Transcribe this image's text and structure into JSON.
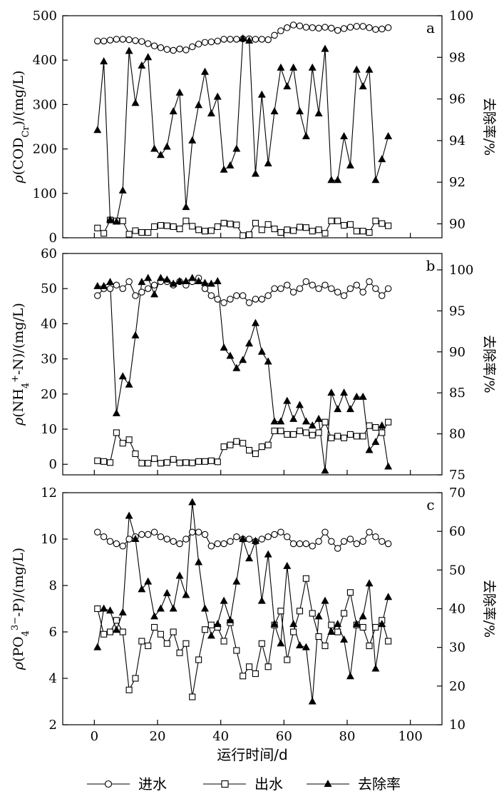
{
  "chart_data": {
    "type": "line",
    "x_label": "运行时间/d",
    "x_ticks": [
      "0",
      "20",
      "40",
      "60",
      "80",
      "100"
    ],
    "xlim": [
      -10,
      110
    ],
    "legend": {
      "influent": "进水",
      "effluent": "出水",
      "removal": "去除率"
    },
    "panels": [
      {
        "id": "a",
        "letter": "a",
        "ylabel_main": "ρ(COD",
        "ylabel_sub": "Cr",
        "ylabel_tail": ")/(mg/L)",
        "ylabel_right": "去除率/%",
        "ylim": [
          0,
          500
        ],
        "y_ticks": [
          "0",
          "100",
          "200",
          "300",
          "400",
          "500"
        ],
        "y2lim": [
          89.33,
          100
        ],
        "y2_ticks": [
          "90",
          "92",
          "94",
          "96",
          "98",
          "100"
        ],
        "x": [
          1,
          3,
          5,
          7,
          9,
          11,
          13,
          15,
          17,
          19,
          21,
          23,
          25,
          27,
          29,
          31,
          33,
          35,
          37,
          39,
          41,
          43,
          45,
          47,
          49,
          51,
          53,
          55,
          57,
          59,
          61,
          63,
          65,
          67,
          69,
          71,
          73,
          75,
          77,
          79,
          81,
          83,
          85,
          87,
          89,
          91,
          93
        ],
        "influent": [
          443,
          443,
          445,
          447,
          447,
          446,
          444,
          442,
          437,
          432,
          428,
          424,
          422,
          425,
          423,
          430,
          436,
          440,
          441,
          443,
          447,
          447,
          447,
          448,
          448,
          447,
          447,
          446,
          456,
          466,
          473,
          479,
          477,
          474,
          473,
          472,
          474,
          472,
          467,
          471,
          474,
          476,
          476,
          473,
          469,
          470,
          473
        ],
        "x_eff": [
          1,
          3,
          5,
          7,
          9,
          11,
          13,
          15,
          17,
          19,
          21,
          23,
          25,
          27,
          29,
          31,
          33,
          35,
          37,
          39,
          41,
          43,
          45,
          47,
          49,
          51,
          53,
          55,
          57,
          59,
          61,
          63,
          65,
          67,
          69,
          71,
          73,
          75,
          77,
          79,
          81,
          83,
          85,
          87,
          89,
          91,
          93
        ],
        "effluent": [
          22,
          10,
          40,
          38,
          38,
          8,
          16,
          12,
          12,
          25,
          28,
          27,
          25,
          20,
          38,
          26,
          18,
          15,
          16,
          25,
          33,
          31,
          29,
          5,
          7,
          33,
          18,
          30,
          20,
          12,
          18,
          16,
          24,
          23,
          15,
          18,
          10,
          38,
          38,
          28,
          30,
          15,
          15,
          12,
          38,
          32,
          27
        ],
        "x_rem": [
          1,
          3,
          5,
          7,
          9,
          11,
          13,
          15,
          17,
          19,
          21,
          23,
          25,
          27,
          29,
          31,
          33,
          35,
          37,
          39,
          41,
          43,
          45,
          47,
          49,
          51,
          53,
          55,
          57,
          59,
          61,
          63,
          65,
          67,
          69,
          71,
          73,
          75,
          77,
          79,
          81,
          83,
          85,
          87,
          89,
          91,
          93
        ],
        "removal": [
          94.5,
          97.8,
          90.2,
          90.1,
          91.6,
          98.3,
          95.8,
          97.6,
          98,
          93.6,
          93.3,
          93.7,
          95.4,
          96.3,
          90.8,
          94,
          95.7,
          97.3,
          95.3,
          96.1,
          92.6,
          92.8,
          93.6,
          98.9,
          98.8,
          92.4,
          96.2,
          92.9,
          95.4,
          97.5,
          96.6,
          97.5,
          95.4,
          94.2,
          97.5,
          95.3,
          98.4,
          92.1,
          92.1,
          94.2,
          92.8,
          97.4,
          96.6,
          97.4,
          92.1,
          93.1,
          94.2
        ]
      },
      {
        "id": "b",
        "letter": "b",
        "ylabel_main": "ρ(NH",
        "ylabel_sub": "4",
        "ylabel_sup": "+",
        "ylabel_tail": "-N)/(mg/L)",
        "ylabel_right": "去除率/%",
        "ylim": [
          -3,
          60
        ],
        "y_ticks": [
          "0",
          "10",
          "20",
          "30",
          "40",
          "50",
          "60"
        ],
        "y2lim": [
          75,
          102
        ],
        "y2_ticks": [
          "75",
          "80",
          "85",
          "90",
          "95",
          "100"
        ],
        "x": [
          1,
          3,
          5,
          7,
          9,
          11,
          13,
          15,
          17,
          19,
          21,
          23,
          25,
          27,
          29,
          31,
          33,
          35,
          37,
          39,
          41,
          43,
          45,
          47,
          49,
          51,
          53,
          55,
          57,
          59,
          61,
          63,
          65,
          67,
          69,
          71,
          73,
          75,
          77,
          79,
          81,
          83,
          85,
          87,
          89,
          91,
          93
        ],
        "influent": [
          48,
          50,
          50,
          51,
          50,
          52,
          48,
          49,
          50,
          51,
          52,
          52,
          51,
          52,
          51,
          52,
          53,
          50,
          48,
          47,
          46,
          47,
          48,
          48,
          46,
          47,
          47,
          48,
          50,
          50,
          51,
          49,
          50,
          52,
          51,
          50,
          51,
          50,
          49,
          48,
          50,
          51,
          49,
          52,
          50,
          48,
          50
        ],
        "x_eff": [
          1,
          3,
          5,
          7,
          9,
          11,
          13,
          15,
          17,
          19,
          21,
          23,
          25,
          27,
          29,
          31,
          33,
          35,
          37,
          39,
          41,
          43,
          45,
          47,
          49,
          51,
          53,
          55,
          57,
          59,
          61,
          63,
          65,
          67,
          69,
          71,
          73,
          75,
          77,
          79,
          81,
          83,
          85,
          87,
          89,
          91,
          93
        ],
        "effluent": [
          1,
          0.8,
          0.5,
          9,
          6,
          7,
          3,
          0.3,
          0.3,
          1.6,
          0.3,
          0.5,
          1.4,
          0.4,
          0.5,
          0.4,
          0.8,
          0.8,
          1,
          0.7,
          5,
          5.5,
          6.5,
          6,
          4,
          3,
          5,
          5.5,
          9.5,
          9.5,
          8.5,
          8.5,
          9.5,
          9,
          8.3,
          9,
          12,
          7.5,
          8,
          7.5,
          8.5,
          8,
          8,
          11,
          10.5,
          9,
          12
        ],
        "x_rem": [
          1,
          3,
          5,
          7,
          9,
          11,
          13,
          15,
          17,
          19,
          21,
          23,
          25,
          27,
          29,
          31,
          33,
          35,
          37,
          39,
          41,
          43,
          45,
          47,
          49,
          51,
          53,
          55,
          57,
          59,
          61,
          63,
          65,
          67,
          69,
          71,
          73,
          75,
          77,
          79,
          81,
          83,
          85,
          87,
          89,
          91,
          93
        ],
        "removal": [
          98,
          98,
          98.5,
          82.5,
          87,
          86,
          92,
          98.5,
          99,
          97,
          99,
          98.8,
          98.3,
          98.6,
          98.6,
          99,
          98.6,
          98.4,
          98.3,
          98.6,
          90.5,
          89.5,
          88,
          89,
          91,
          93.5,
          90,
          88.8,
          81.5,
          81.5,
          84,
          81.8,
          83.5,
          81.5,
          81,
          81.8,
          75.5,
          85,
          83,
          85,
          83,
          84.5,
          84.5,
          78,
          79,
          81,
          76
        ]
      },
      {
        "id": "c",
        "letter": "c",
        "ylabel_main": "ρ(PO",
        "ylabel_sub": "4",
        "ylabel_sup": "3−",
        "ylabel_tail": "-P)/(mg/L)",
        "ylabel_right": "去除率/%",
        "ylim": [
          2,
          12
        ],
        "y_ticks": [
          "2",
          "4",
          "6",
          "8",
          "10",
          "12"
        ],
        "y2lim": [
          10,
          70
        ],
        "y2_ticks": [
          "10",
          "20",
          "30",
          "40",
          "50",
          "60",
          "70"
        ],
        "x": [
          1,
          3,
          5,
          7,
          9,
          11,
          13,
          15,
          17,
          19,
          21,
          23,
          25,
          27,
          29,
          31,
          33,
          35,
          37,
          39,
          41,
          43,
          45,
          47,
          49,
          51,
          53,
          55,
          57,
          59,
          61,
          63,
          65,
          67,
          69,
          71,
          73,
          75,
          77,
          79,
          81,
          83,
          85,
          87,
          89,
          91,
          93
        ],
        "influent": [
          10.3,
          10.1,
          9.9,
          9.8,
          9.7,
          10,
          10.1,
          10.2,
          10.2,
          10.3,
          10.1,
          10,
          9.9,
          9.8,
          10,
          10.3,
          10.3,
          10.2,
          9.7,
          9.8,
          9.8,
          9.9,
          10.1,
          10,
          10,
          9.9,
          10,
          10.1,
          10.2,
          10.3,
          10.1,
          9.8,
          9.8,
          9.8,
          9.7,
          9.9,
          10.3,
          9.9,
          9.6,
          9.9,
          10,
          9.8,
          9.9,
          10.3,
          10.1,
          9.9,
          9.8
        ],
        "x_eff": [
          1,
          3,
          5,
          7,
          9,
          11,
          13,
          15,
          17,
          19,
          21,
          23,
          25,
          27,
          29,
          31,
          33,
          35,
          37,
          39,
          41,
          43,
          45,
          47,
          49,
          51,
          53,
          55,
          57,
          59,
          61,
          63,
          65,
          67,
          69,
          71,
          73,
          75,
          77,
          79,
          81,
          83,
          85,
          87,
          89,
          91,
          93
        ],
        "effluent": [
          7,
          5.9,
          6,
          6.5,
          6,
          3.5,
          4,
          5.6,
          5.4,
          6.2,
          5.9,
          5.5,
          6,
          5.1,
          5.5,
          3.2,
          4.8,
          6.1,
          6.3,
          6.2,
          5.6,
          6.4,
          5.2,
          4.1,
          4.5,
          4.2,
          5.5,
          4.5,
          6.3,
          6.9,
          4.8,
          6,
          6.9,
          8.3,
          6.8,
          5.8,
          5.4,
          6.3,
          6,
          6.8,
          7.7,
          6.3,
          6.2,
          5.4,
          6.2,
          6.5,
          5.6
        ],
        "x_rem": [
          1,
          3,
          5,
          7,
          9,
          11,
          13,
          15,
          17,
          19,
          21,
          23,
          25,
          27,
          29,
          31,
          33,
          35,
          37,
          39,
          41,
          43,
          45,
          47,
          49,
          51,
          53,
          55,
          57,
          59,
          61,
          63,
          65,
          67,
          69,
          71,
          73,
          75,
          77,
          79,
          81,
          83,
          85,
          87,
          89,
          91,
          93
        ],
        "removal": [
          30,
          40,
          39.5,
          34.5,
          39,
          64,
          58,
          45,
          47,
          38,
          40,
          44,
          40,
          48.5,
          43.5,
          67.5,
          52,
          40,
          33,
          36,
          42,
          37,
          47,
          58,
          53,
          57.5,
          42,
          54,
          36,
          31,
          51,
          36,
          30.5,
          30,
          16,
          38,
          42,
          34,
          36,
          32,
          22.5,
          36,
          38,
          46.5,
          24.5,
          36,
          43
        ]
      }
    ]
  }
}
